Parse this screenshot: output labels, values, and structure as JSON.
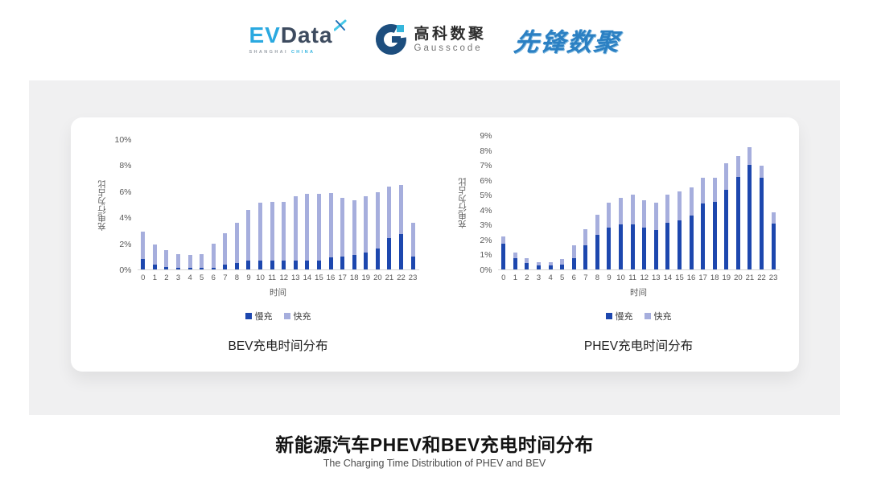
{
  "header": {
    "evdata": {
      "ev": "EV",
      "data": "Data",
      "sub_shanghai": "SHANGHAI",
      "sub_china": "CHINA"
    },
    "gausscode": {
      "cn": "高科数聚",
      "en": "Gausscode"
    },
    "pioneer": "先锋数聚"
  },
  "footer": {
    "title": "新能源汽车PHEV和BEV充电时间分布",
    "subtitle": "The Charging Time Distribution of PHEV and BEV"
  },
  "colors": {
    "slow_charge": "#1d47ae",
    "fast_charge": "#a6aedd",
    "panel_bg": "#f0f0f1",
    "axis_text": "#595959",
    "evdata_blue": "#2aa9e0",
    "evdata_dark": "#3d4b5f",
    "gausscode_navy": "#1d4e7e",
    "gausscode_lightblue": "#35b6dc",
    "pioneer_blue": "#2b80c3"
  },
  "chart_data": [
    {
      "type": "bar",
      "stacked": true,
      "title": "BEV充电时间分布",
      "xlabel": "时间",
      "ylabel": "充电行为占比",
      "ylim": [
        0,
        10
      ],
      "ytick_labels": [
        "0%",
        "2%",
        "4%",
        "6%",
        "8%",
        "10%"
      ],
      "grid": false,
      "legend_position": "bottom",
      "categories": [
        "0",
        "1",
        "2",
        "3",
        "4",
        "5",
        "6",
        "7",
        "8",
        "9",
        "10",
        "11",
        "12",
        "13",
        "14",
        "15",
        "16",
        "17",
        "18",
        "19",
        "20",
        "21",
        "22",
        "23"
      ],
      "series": [
        {
          "name": "慢充",
          "color": "#1d47ae",
          "values": [
            0.8,
            0.35,
            0.2,
            0.15,
            0.1,
            0.1,
            0.15,
            0.35,
            0.5,
            0.7,
            0.65,
            0.7,
            0.65,
            0.7,
            0.7,
            0.7,
            0.9,
            1.0,
            1.1,
            1.3,
            1.6,
            2.4,
            2.7,
            1.0
          ]
        },
        {
          "name": "快充",
          "color": "#a6aedd",
          "values": [
            2.1,
            1.55,
            1.3,
            1.05,
            1.0,
            1.1,
            1.85,
            2.45,
            3.1,
            3.9,
            4.5,
            4.5,
            4.55,
            4.9,
            5.1,
            5.1,
            4.95,
            4.5,
            4.2,
            4.3,
            4.3,
            3.95,
            3.8,
            2.6
          ]
        }
      ]
    },
    {
      "type": "bar",
      "stacked": true,
      "title": "PHEV充电时间分布",
      "xlabel": "时间",
      "ylabel": "充电行为占比",
      "ylim": [
        0,
        9
      ],
      "ytick_labels": [
        "0%",
        "1%",
        "2%",
        "3%",
        "4%",
        "5%",
        "6%",
        "7%",
        "8%",
        "9%"
      ],
      "grid": false,
      "legend_position": "bottom",
      "categories": [
        "0",
        "1",
        "2",
        "3",
        "4",
        "5",
        "6",
        "7",
        "8",
        "9",
        "10",
        "11",
        "12",
        "13",
        "14",
        "15",
        "16",
        "17",
        "18",
        "19",
        "20",
        "21",
        "22",
        "23"
      ],
      "series": [
        {
          "name": "慢充",
          "color": "#1d47ae",
          "values": [
            1.75,
            0.75,
            0.45,
            0.25,
            0.25,
            0.3,
            0.75,
            1.6,
            2.3,
            2.8,
            3.0,
            3.0,
            2.8,
            2.65,
            3.1,
            3.3,
            3.6,
            4.4,
            4.55,
            5.35,
            6.2,
            7.0,
            6.15,
            3.05
          ]
        },
        {
          "name": "快充",
          "color": "#a6aedd",
          "values": [
            0.45,
            0.4,
            0.3,
            0.25,
            0.25,
            0.4,
            0.85,
            1.1,
            1.35,
            1.7,
            1.8,
            2.0,
            1.85,
            1.85,
            1.9,
            1.95,
            1.9,
            1.75,
            1.6,
            1.75,
            1.4,
            1.2,
            0.8,
            0.8
          ]
        }
      ]
    }
  ]
}
